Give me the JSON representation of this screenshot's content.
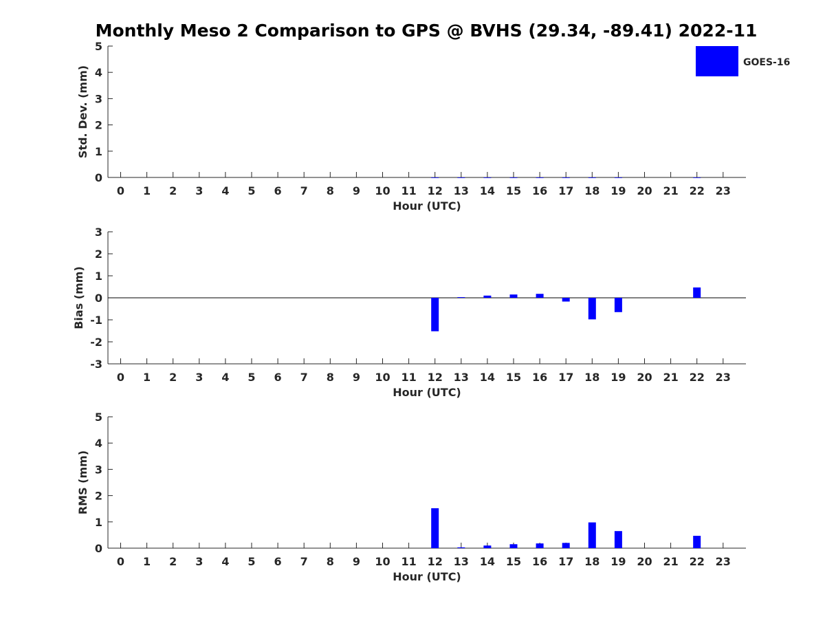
{
  "title": "Monthly Meso 2 Comparison to GPS @ BVHS (29.34, -89.41) 2022-11",
  "legend": {
    "label": "GOES-16",
    "color": "#0000ff"
  },
  "chart_data": [
    {
      "type": "bar",
      "categories": [
        "0",
        "1",
        "2",
        "3",
        "4",
        "5",
        "6",
        "7",
        "8",
        "9",
        "10",
        "11",
        "12",
        "13",
        "14",
        "15",
        "16",
        "17",
        "18",
        "19",
        "20",
        "21",
        "22",
        "23"
      ],
      "series": [
        {
          "name": "GOES-16",
          "values": [
            null,
            null,
            null,
            null,
            null,
            null,
            null,
            null,
            null,
            null,
            null,
            null,
            0,
            0,
            0,
            0,
            0,
            0,
            0,
            0,
            null,
            null,
            0,
            null
          ]
        }
      ],
      "xlabel": "Hour (UTC)",
      "ylabel": "Std. Dev. (mm)",
      "ylim": [
        0,
        5
      ],
      "yticks": [
        0,
        1,
        2,
        3,
        4,
        5
      ],
      "grid": false,
      "legend_position": "top-right"
    },
    {
      "type": "bar",
      "categories": [
        "0",
        "1",
        "2",
        "3",
        "4",
        "5",
        "6",
        "7",
        "8",
        "9",
        "10",
        "11",
        "12",
        "13",
        "14",
        "15",
        "16",
        "17",
        "18",
        "19",
        "20",
        "21",
        "22",
        "23"
      ],
      "series": [
        {
          "name": "GOES-16",
          "values": [
            null,
            null,
            null,
            null,
            null,
            null,
            null,
            null,
            null,
            null,
            null,
            null,
            -1.52,
            0.03,
            0.1,
            0.15,
            0.18,
            -0.17,
            -0.98,
            -0.65,
            null,
            null,
            0.47,
            null
          ]
        }
      ],
      "xlabel": "Hour (UTC)",
      "ylabel": "Bias (mm)",
      "ylim": [
        -3,
        3
      ],
      "yticks": [
        -3,
        -2,
        -1,
        0,
        1,
        2,
        3
      ],
      "zero_line": true,
      "grid": false
    },
    {
      "type": "bar",
      "categories": [
        "0",
        "1",
        "2",
        "3",
        "4",
        "5",
        "6",
        "7",
        "8",
        "9",
        "10",
        "11",
        "12",
        "13",
        "14",
        "15",
        "16",
        "17",
        "18",
        "19",
        "20",
        "21",
        "22",
        "23"
      ],
      "series": [
        {
          "name": "GOES-16",
          "values": [
            null,
            null,
            null,
            null,
            null,
            null,
            null,
            null,
            null,
            null,
            null,
            null,
            1.52,
            0.03,
            0.1,
            0.15,
            0.18,
            0.2,
            0.98,
            0.65,
            null,
            null,
            0.47,
            null
          ]
        }
      ],
      "xlabel": "Hour (UTC)",
      "ylabel": "RMS (mm)",
      "ylim": [
        0,
        5
      ],
      "yticks": [
        0,
        1,
        2,
        3,
        4,
        5
      ],
      "grid": false
    }
  ]
}
